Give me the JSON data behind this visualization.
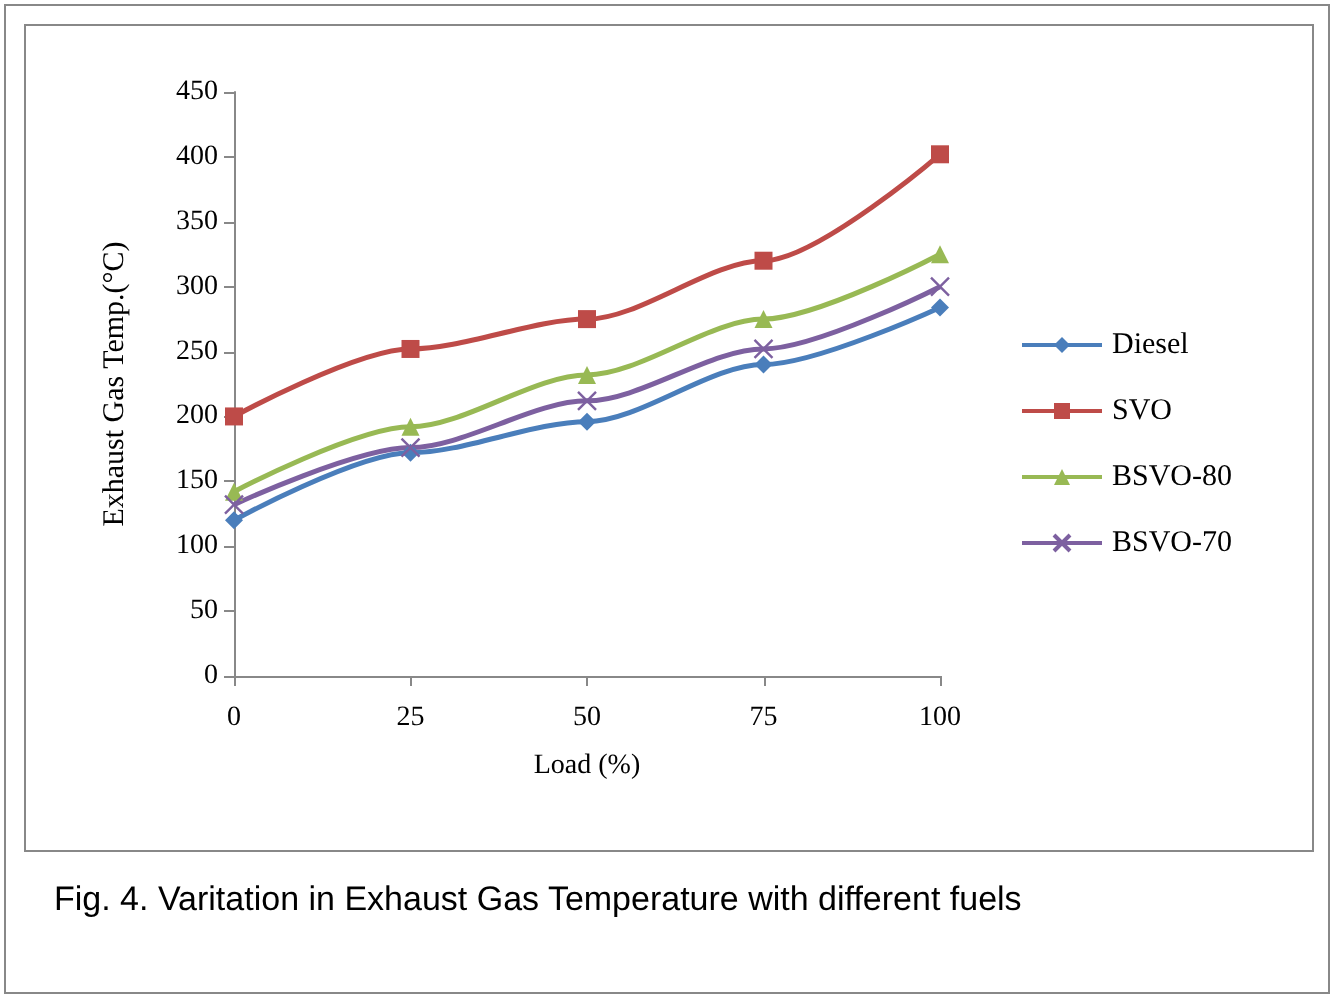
{
  "chart_data": {
    "type": "line",
    "title": "Fig. 4. Varitation in Exhaust Gas Temperature with different fuels",
    "xlabel": "Load (%)",
    "ylabel": "Exhaust Gas Temp.(°C)",
    "categories": [
      "0",
      "25",
      "50",
      "75",
      "100"
    ],
    "series": [
      {
        "name": "Diesel",
        "color": "#4a7ebb",
        "marker": "diamond",
        "values": [
          120,
          172,
          196,
          240,
          284
        ]
      },
      {
        "name": "SVO",
        "color": "#be4b48",
        "marker": "square",
        "values": [
          200,
          252,
          275,
          320,
          402
        ]
      },
      {
        "name": "BSVO-80",
        "color": "#98b954",
        "marker": "triangle",
        "values": [
          142,
          192,
          232,
          275,
          325
        ]
      },
      {
        "name": "BSVO-70",
        "color": "#7d60a0",
        "marker": "cross",
        "values": [
          132,
          176,
          212,
          252,
          300
        ]
      }
    ],
    "ylim": [
      0,
      450
    ],
    "yticks": [
      0,
      50,
      100,
      150,
      200,
      250,
      300,
      350,
      400,
      450
    ],
    "grid": false,
    "legend": "right",
    "line_style": "solid"
  }
}
